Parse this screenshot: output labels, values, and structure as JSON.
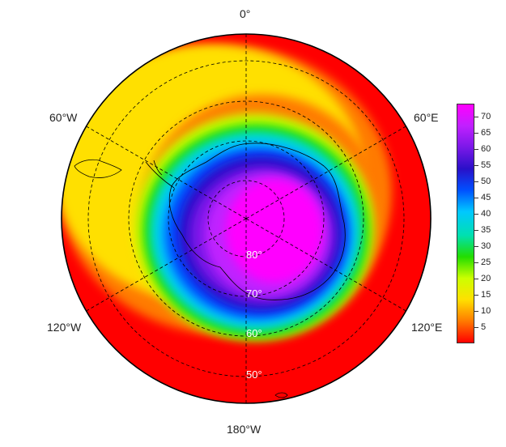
{
  "map": {
    "projection": "south-polar-stereographic",
    "longitude_labels": [
      "0°",
      "60°E",
      "120°E",
      "180°W",
      "120°W",
      "60°W"
    ],
    "latitude_labels": [
      "80°",
      "70°",
      "60°",
      "50°"
    ],
    "colormap": [
      "#ff0000",
      "#ff7a00",
      "#ffe000",
      "#ccff00",
      "#22dd00",
      "#00e0b0",
      "#00c8ff",
      "#0050ff",
      "#2a10c8",
      "#7a18e8",
      "#c020ff",
      "#ff00ff"
    ],
    "colorbar": {
      "min": 0,
      "max": 74,
      "tick_labels": [
        "70",
        "65",
        "60",
        "55",
        "50",
        "45",
        "40",
        "35",
        "30",
        "25",
        "20",
        "15",
        "10",
        "5"
      ]
    }
  }
}
